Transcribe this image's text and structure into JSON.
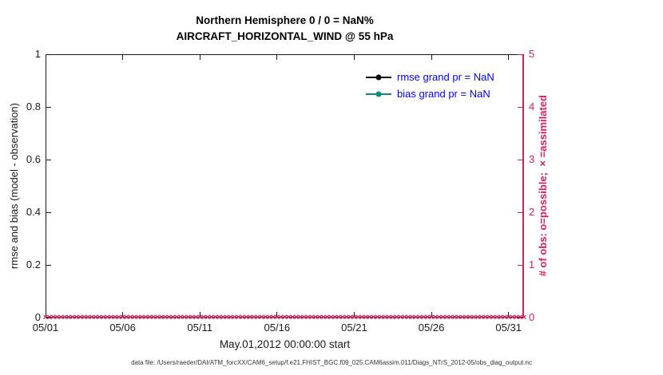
{
  "chart_data": {
    "type": "line",
    "title": "Northern Hemisphere 0 / 0 = NaN%",
    "subtitle": "AIRCRAFT_HORIZONTAL_WIND @ 55 hPa",
    "xlabel": "May.01,2012 00:00:00 start",
    "grid": false,
    "legend_position": "upper right",
    "x_axis": {
      "tick_labels": [
        "05/01",
        "05/06",
        "05/11",
        "05/16",
        "05/21",
        "05/26",
        "05/31"
      ],
      "tick_days": [
        0,
        5,
        10,
        15,
        20,
        25,
        30
      ],
      "range_days": [
        0,
        31
      ]
    },
    "y_left": {
      "label": "rmse and bias (model - observation)",
      "tick_labels": [
        "0",
        "0.2",
        "0.4",
        "0.6",
        "0.8",
        "1"
      ],
      "tick_values": [
        0,
        0.2,
        0.4,
        0.6,
        0.8,
        1
      ],
      "range": [
        0,
        1
      ],
      "color": "#1a1a1a"
    },
    "y_right": {
      "label": "# of obs: o=possible; ×=assimilated",
      "tick_labels": [
        "0",
        "1",
        "2",
        "3",
        "4",
        "5"
      ],
      "tick_values": [
        0,
        1,
        2,
        3,
        4,
        5
      ],
      "range": [
        0,
        5
      ],
      "color": "#d81e5b"
    },
    "legend": {
      "text_color": "#0000ff",
      "entries": [
        {
          "label": "rmse grand pr = NaN",
          "color": "#000000"
        },
        {
          "label": "bias grand pr = NaN",
          "color": "#0e8a82"
        }
      ]
    },
    "series": [
      {
        "name": "rmse",
        "axis": "left",
        "color": "#000000",
        "values": []
      },
      {
        "name": "bias",
        "axis": "left",
        "color": "#0e8a82",
        "values": []
      },
      {
        "name": "assimilated obs count",
        "axis": "right",
        "marker": "×",
        "color": "#d81e5b",
        "constant_value": 0,
        "start_day": 0,
        "end_day": 31,
        "step_day": 0.25
      }
    ]
  },
  "footer": {
    "text": "data file: /Users/raeder/DAI/ATM_forcXX/CAM6_setup/f.e21.FHIST_BGC.f09_025.CAM6assim.011/Diags_NTrS_2012-05/obs_diag_output.nc"
  }
}
